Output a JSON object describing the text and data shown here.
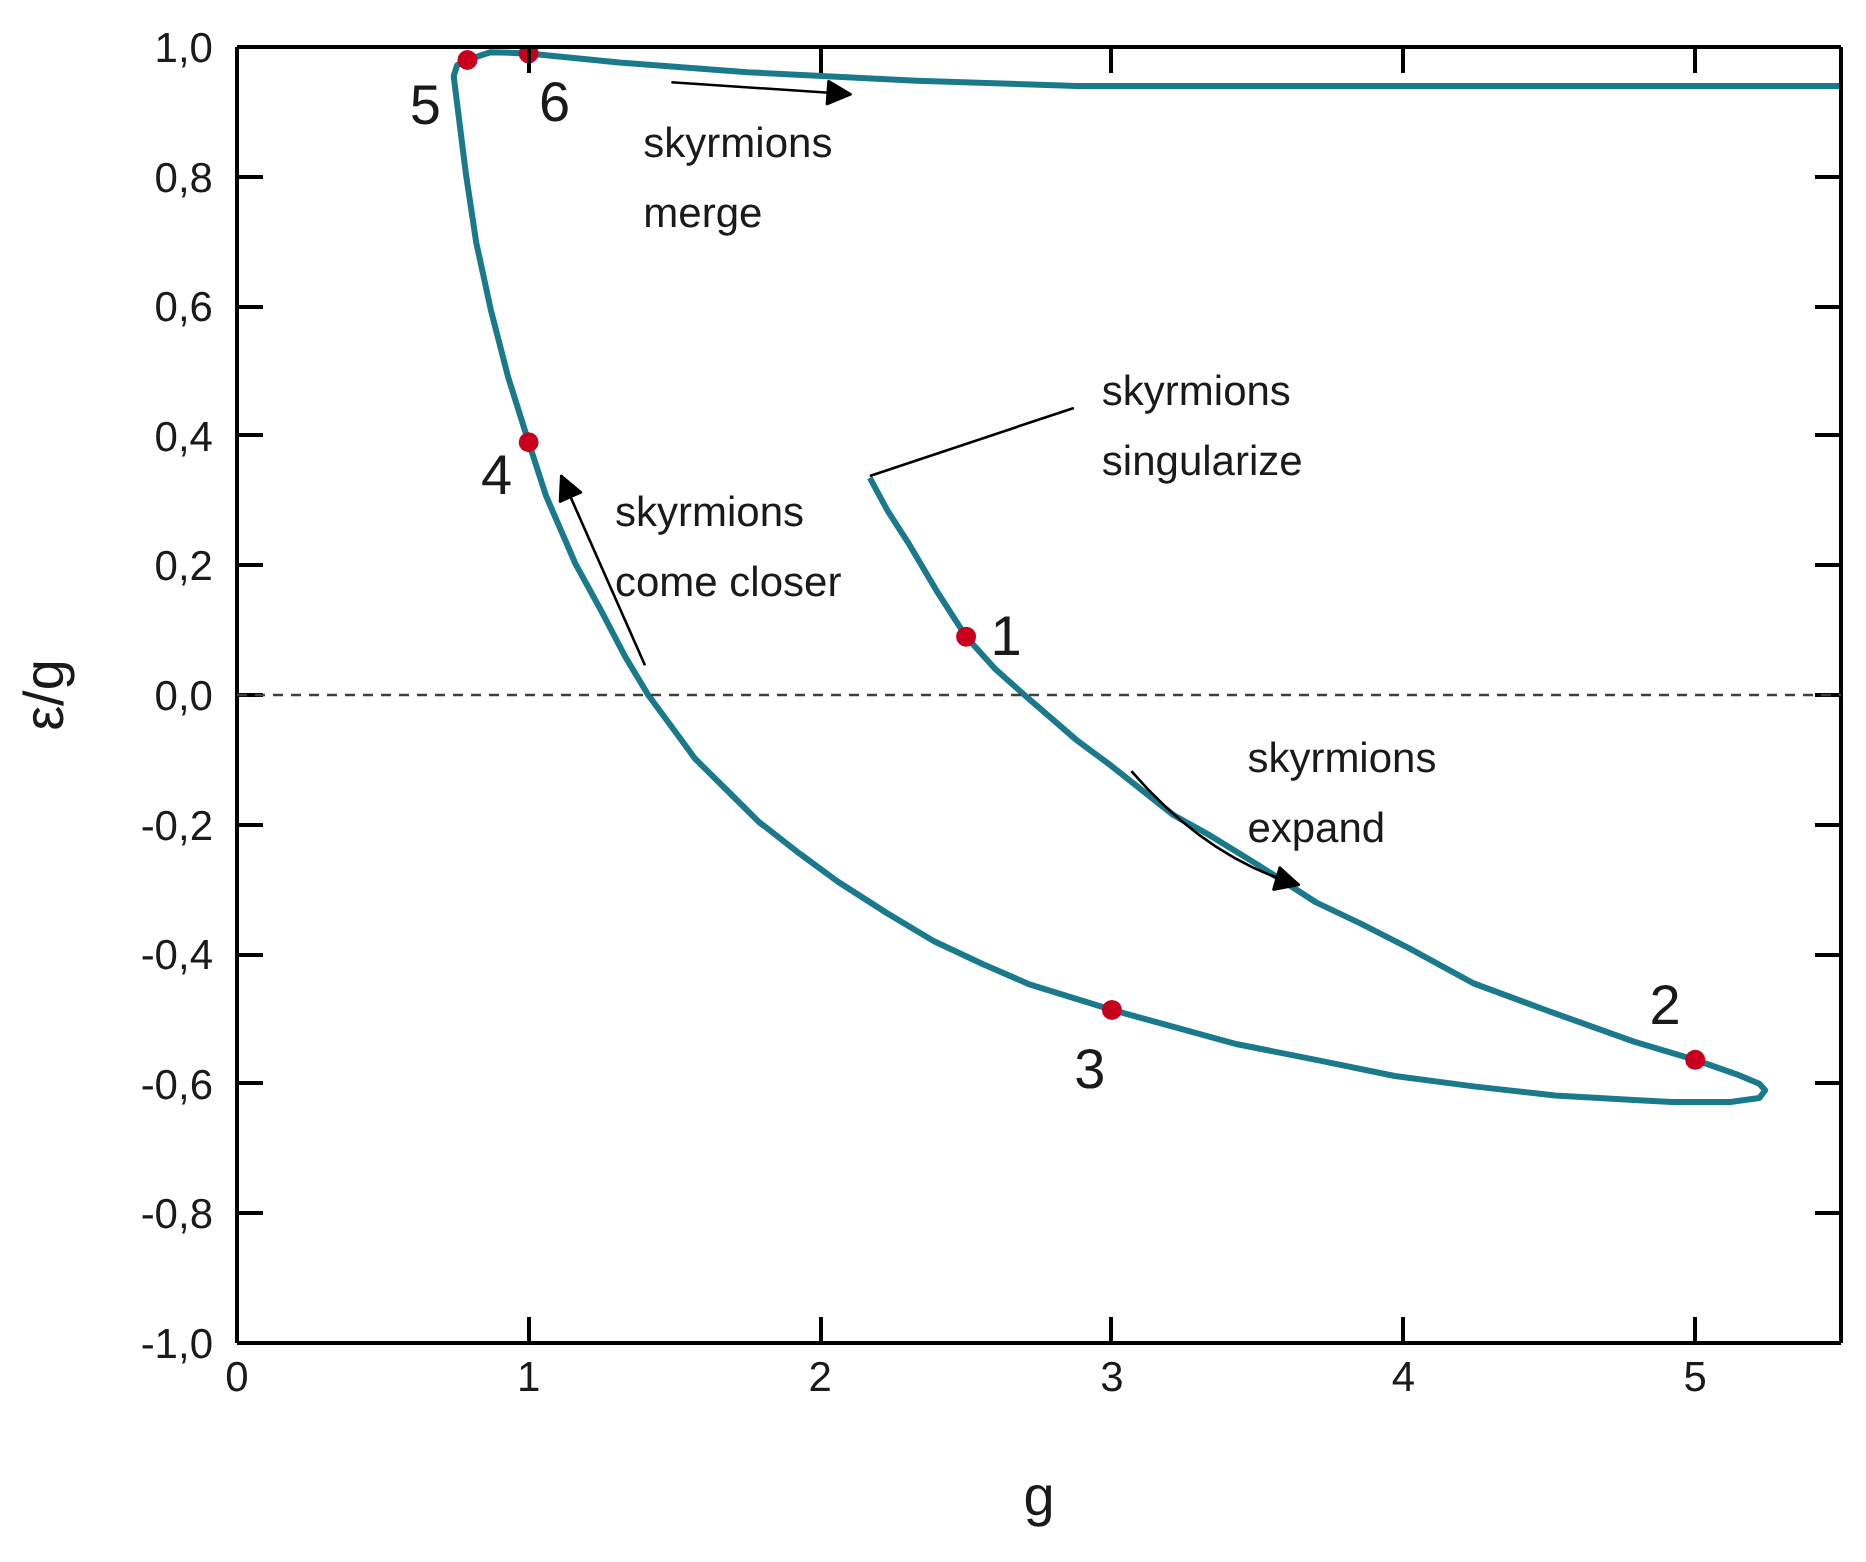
{
  "chart_data": {
    "type": "line",
    "xlabel": "g",
    "ylabel": "ε/g",
    "xlim": [
      0,
      5.5
    ],
    "ylim": [
      -1,
      1
    ],
    "xticks": [
      0,
      1,
      2,
      3,
      4,
      5
    ],
    "yticks": [
      {
        "value": -1,
        "label": "-1,0"
      },
      {
        "value": -0.8,
        "label": "-0,8"
      },
      {
        "value": -0.6,
        "label": "-0,6"
      },
      {
        "value": -0.4,
        "label": "-0,4"
      },
      {
        "value": -0.2,
        "label": "-0,2"
      },
      {
        "value": 0,
        "label": "0,0"
      },
      {
        "value": 0.2,
        "label": "0,2"
      },
      {
        "value": 0.4,
        "label": "0,4"
      },
      {
        "value": 0.6,
        "label": "0,6"
      },
      {
        "value": 0.8,
        "label": "0,8"
      },
      {
        "value": 1,
        "label": "1,0"
      }
    ],
    "series": [
      {
        "color": "#1a7a8c",
        "x": [
          2.17,
          2.23,
          2.3,
          2.4,
          2.5,
          2.6,
          2.7,
          2.88,
          3.0,
          3.21,
          3.33,
          3.5,
          3.7,
          3.85,
          4.02,
          4.24,
          4.48,
          4.79,
          5.0,
          5.14,
          5.22,
          5.24,
          5.22,
          5.12,
          4.92,
          4.79,
          4.52,
          4.24,
          3.97,
          3.7,
          3.43,
          3.0,
          2.72,
          2.56,
          2.39,
          2.23,
          2.06,
          1.93,
          1.79,
          1.68,
          1.57,
          1.52,
          1.41,
          1.33,
          1.25,
          1.16,
          1.06,
          1.0,
          0.93,
          0.87,
          0.82,
          0.785,
          0.756,
          0.743,
          0.755,
          0.79,
          0.87,
          1.0,
          1.31,
          1.75,
          2.33,
          2.88,
          4.0,
          5.5
        ],
        "values": [
          0.335,
          0.285,
          0.236,
          0.16,
          0.09,
          0.04,
          0.0,
          -0.07,
          -0.11,
          -0.185,
          -0.215,
          -0.262,
          -0.32,
          -0.352,
          -0.391,
          -0.445,
          -0.485,
          -0.535,
          -0.563,
          -0.585,
          -0.6,
          -0.61,
          -0.622,
          -0.628,
          -0.628,
          -0.625,
          -0.618,
          -0.604,
          -0.588,
          -0.563,
          -0.539,
          -0.486,
          -0.447,
          -0.416,
          -0.38,
          -0.337,
          -0.288,
          -0.245,
          -0.196,
          -0.147,
          -0.098,
          -0.067,
          0.0,
          0.06,
          0.129,
          0.203,
          0.307,
          0.39,
          0.49,
          0.595,
          0.699,
          0.804,
          0.908,
          0.955,
          0.972,
          0.98,
          0.992,
          0.99,
          0.976,
          0.961,
          0.948,
          0.94,
          0.94,
          0.94
        ]
      },
      {
        "type": "scatter",
        "marker": "circle",
        "color": "#c8001e",
        "x": [
          2.5,
          5.0,
          3.0,
          1.0,
          0.79,
          1.0
        ],
        "values": [
          0.09,
          -0.563,
          -0.486,
          0.39,
          0.98,
          0.99
        ]
      }
    ],
    "ref_lines": [
      {
        "axis": "y",
        "value": 0,
        "line_style": "dashed",
        "color": "#404040"
      }
    ],
    "annotations": [
      {
        "text": "skyrmions\nmerge",
        "x": 1.75,
        "y": 0.961
      },
      {
        "text": "skyrmions\nsingularize",
        "x": 2.17,
        "y": 0.335
      },
      {
        "text": "skyrmions\ncome closer",
        "x": 1.2,
        "y": 0.16
      },
      {
        "text": "skyrmions\nexpand",
        "x": 3.3,
        "y": -0.21
      },
      {
        "text": "1",
        "x": 2.5,
        "y": 0.09
      },
      {
        "text": "2",
        "x": 5.0,
        "y": -0.563
      },
      {
        "text": "3",
        "x": 3.0,
        "y": -0.486
      },
      {
        "text": "4",
        "x": 1.0,
        "y": 0.39
      },
      {
        "text": "5",
        "x": 0.79,
        "y": 0.98
      },
      {
        "text": "6",
        "x": 1.0,
        "y": 0.99
      }
    ]
  }
}
